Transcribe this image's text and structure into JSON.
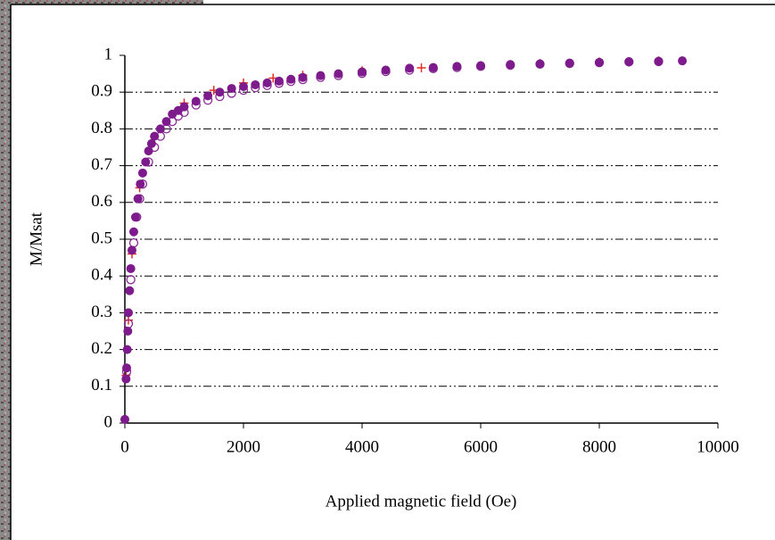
{
  "chart_data": {
    "type": "scatter",
    "xlabel": "Applied magnetic field (Oe)",
    "ylabel": "M/Msat",
    "xlim": [
      0,
      10000
    ],
    "xticks": [
      0,
      2000,
      4000,
      6000,
      8000,
      10000
    ],
    "ylim": [
      0,
      1
    ],
    "yticks": [
      0,
      0.1,
      0.2,
      0.3,
      0.4,
      0.5,
      0.6,
      0.7,
      0.8,
      0.9,
      1
    ],
    "grid": true,
    "series": [
      {
        "color": "#e03020",
        "marker": "cross",
        "x": [
          20,
          60,
          120,
          250,
          500,
          1000,
          1500,
          2000,
          2500,
          3000,
          4000,
          5000,
          6000,
          7000,
          8000,
          9000
        ],
        "values": [
          0.13,
          0.28,
          0.46,
          0.64,
          0.78,
          0.87,
          0.905,
          0.925,
          0.938,
          0.946,
          0.958,
          0.966,
          0.972,
          0.978,
          0.982,
          0.985
        ]
      },
      {
        "color": "#8a2a96",
        "marker": "open",
        "x": [
          30,
          60,
          100,
          150,
          200,
          250,
          300,
          400,
          500,
          600,
          700,
          800,
          900,
          1000,
          1200,
          1400,
          1600,
          1800,
          2000,
          2200,
          2400,
          2600,
          2800,
          3000,
          3300,
          3600,
          4000,
          4400,
          4800,
          5200,
          5600,
          6000,
          6500,
          7000,
          7500,
          8000,
          8500,
          9000
        ],
        "values": [
          0.14,
          0.27,
          0.39,
          0.49,
          0.56,
          0.61,
          0.65,
          0.71,
          0.75,
          0.78,
          0.8,
          0.82,
          0.835,
          0.845,
          0.865,
          0.878,
          0.888,
          0.897,
          0.905,
          0.912,
          0.918,
          0.924,
          0.929,
          0.934,
          0.94,
          0.945,
          0.951,
          0.956,
          0.96,
          0.964,
          0.967,
          0.97,
          0.973,
          0.976,
          0.978,
          0.98,
          0.982,
          0.983
        ]
      },
      {
        "color": "#7d1a8c",
        "marker": "filled",
        "x": [
          0,
          20,
          30,
          40,
          50,
          60,
          80,
          100,
          120,
          150,
          180,
          220,
          260,
          300,
          350,
          400,
          450,
          500,
          600,
          700,
          800,
          900,
          1000,
          1200,
          1400,
          1600,
          1800,
          2000,
          2200,
          2400,
          2600,
          2800,
          3000,
          3300,
          3600,
          4000,
          4400,
          4800,
          5200,
          5600,
          6000,
          6500,
          7000,
          7500,
          8000,
          8500,
          9000,
          9400
        ],
        "values": [
          0.01,
          0.12,
          0.15,
          0.2,
          0.25,
          0.3,
          0.36,
          0.42,
          0.47,
          0.52,
          0.56,
          0.61,
          0.65,
          0.68,
          0.71,
          0.74,
          0.76,
          0.78,
          0.8,
          0.82,
          0.84,
          0.85,
          0.86,
          0.875,
          0.89,
          0.9,
          0.91,
          0.915,
          0.92,
          0.925,
          0.93,
          0.935,
          0.94,
          0.945,
          0.95,
          0.955,
          0.96,
          0.965,
          0.967,
          0.97,
          0.972,
          0.975,
          0.977,
          0.979,
          0.981,
          0.983,
          0.984,
          0.985
        ]
      }
    ]
  }
}
